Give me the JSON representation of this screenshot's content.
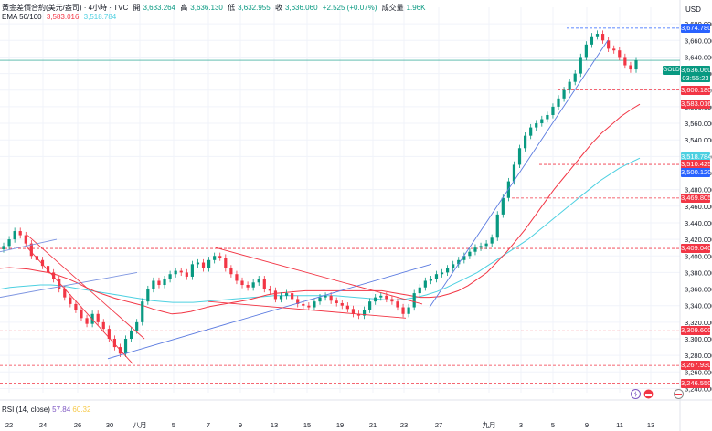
{
  "header": {
    "symbol": "黃金差價合約(美元/盎司) · 4小時 · TVC",
    "open_label": "開",
    "open": "3,633.264",
    "high_label": "高",
    "high": "3,636.130",
    "low_label": "低",
    "low": "3,632.955",
    "close_label": "收",
    "close": "3,636.060",
    "change": "+2.525 (+0.07%)",
    "volume_label": "成交量",
    "volume": "1.96K"
  },
  "ema": {
    "label": "EMA 50/100",
    "ema50": "3,583.016",
    "ema100": "3,518.784"
  },
  "rsi": {
    "label": "RSI (14, close)",
    "value1": "57.84",
    "value2": "60.32"
  },
  "currency": "USD",
  "gold_tag": {
    "name": "GOLD",
    "price": "3,636.060",
    "timer": "03:55:23"
  },
  "price_tags": [
    {
      "price": "3,674.780",
      "color": "blue"
    },
    {
      "price": "3,600.180",
      "color": "red"
    },
    {
      "price": "3,583.016",
      "color": "red"
    },
    {
      "price": "3,518.784",
      "color": "cyan"
    },
    {
      "price": "3,510.425",
      "color": "red"
    },
    {
      "price": "3,500.120",
      "color": "blue"
    },
    {
      "price": "3,469.805",
      "color": "red"
    },
    {
      "price": "3,409.040",
      "color": "red"
    },
    {
      "price": "3,309.600",
      "color": "red"
    },
    {
      "price": "3,267.930",
      "color": "red"
    },
    {
      "price": "3,246.550",
      "color": "red"
    }
  ],
  "chart_data": {
    "type": "candlestick",
    "y_axis_ticks": [
      3680,
      3660,
      3640,
      3620,
      3600,
      3580,
      3560,
      3540,
      3520,
      3500,
      3480,
      3460,
      3440,
      3420,
      3400,
      3380,
      3360,
      3340,
      3320,
      3300,
      3280,
      3260,
      3240
    ],
    "y_axis_tick_labels": [
      "3,680.000",
      "3,660.000",
      "3,640.000",
      "3,620.000",
      "3,600.000",
      "3,580.000",
      "3,560.000",
      "3,540.000",
      "3,520.000",
      "3,500.000",
      "3,480.000",
      "3,460.000",
      "3,440.000",
      "3,420.000",
      "3,400.000",
      "3,380.000",
      "3,360.000",
      "3,340.000",
      "3,320.000",
      "3,300.000",
      "3,280.000",
      "3,260.000",
      "3,240.000"
    ],
    "ylim": [
      3235,
      3700
    ],
    "x_tick_labels": [
      "22",
      "24",
      "26",
      "30",
      "八月",
      "5",
      "7",
      "9",
      "13",
      "15",
      "19",
      "21",
      "23",
      "27",
      "九月",
      "3",
      "5",
      "9",
      "11",
      "13"
    ],
    "close_series": [
      3412,
      3420,
      3430,
      3425,
      3415,
      3400,
      3395,
      3388,
      3380,
      3372,
      3360,
      3350,
      3342,
      3335,
      3325,
      3318,
      3330,
      3320,
      3312,
      3300,
      3290,
      3282,
      3300,
      3310,
      3320,
      3345,
      3360,
      3370,
      3365,
      3372,
      3378,
      3382,
      3380,
      3375,
      3390,
      3392,
      3385,
      3395,
      3400,
      3398,
      3385,
      3378,
      3370,
      3365,
      3362,
      3368,
      3372,
      3360,
      3358,
      3348,
      3352,
      3355,
      3348,
      3342,
      3340,
      3338,
      3345,
      3350,
      3352,
      3346,
      3343,
      3340,
      3336,
      3330,
      3328,
      3335,
      3345,
      3350,
      3352,
      3348,
      3345,
      3338,
      3330,
      3338,
      3355,
      3362,
      3370,
      3372,
      3378,
      3380,
      3385,
      3390,
      3395,
      3400,
      3405,
      3410,
      3412,
      3415,
      3422,
      3450,
      3470,
      3490,
      3510,
      3530,
      3545,
      3555,
      3560,
      3565,
      3570,
      3580,
      3590,
      3600,
      3610,
      3620,
      3640,
      3655,
      3665,
      3668,
      3660,
      3650,
      3648,
      3640,
      3630,
      3625,
      3636
    ],
    "ema50_series": [
      3385,
      3386,
      3385,
      3384,
      3382,
      3380,
      3377,
      3373,
      3368,
      3362,
      3357,
      3353,
      3349,
      3346,
      3343,
      3340,
      3336,
      3333,
      3330,
      3331,
      3333,
      3336,
      3339,
      3341,
      3343,
      3345,
      3347,
      3350,
      3353,
      3355,
      3356,
      3357,
      3358,
      3358,
      3358,
      3358,
      3358,
      3358,
      3358,
      3358,
      3358,
      3356,
      3354,
      3352,
      3350,
      3350,
      3351,
      3354,
      3358,
      3364,
      3372,
      3380,
      3392,
      3404,
      3418,
      3432,
      3448,
      3464,
      3480,
      3494,
      3508,
      3522,
      3536,
      3548,
      3558,
      3568,
      3576,
      3583
    ],
    "ema100_series": [
      3360,
      3362,
      3363,
      3364,
      3365,
      3365,
      3364,
      3362,
      3360,
      3358,
      3356,
      3354,
      3352,
      3350,
      3348,
      3346,
      3345,
      3344,
      3344,
      3344,
      3345,
      3346,
      3347,
      3348,
      3349,
      3350,
      3351,
      3352,
      3352,
      3352,
      3352,
      3352,
      3352,
      3352,
      3351,
      3350,
      3349,
      3348,
      3347,
      3347,
      3348,
      3350,
      3353,
      3357,
      3362,
      3368,
      3374,
      3380,
      3388,
      3396,
      3404,
      3412,
      3420,
      3430,
      3440,
      3450,
      3460,
      3470,
      3480,
      3490,
      3498,
      3506,
      3512,
      3518
    ]
  }
}
